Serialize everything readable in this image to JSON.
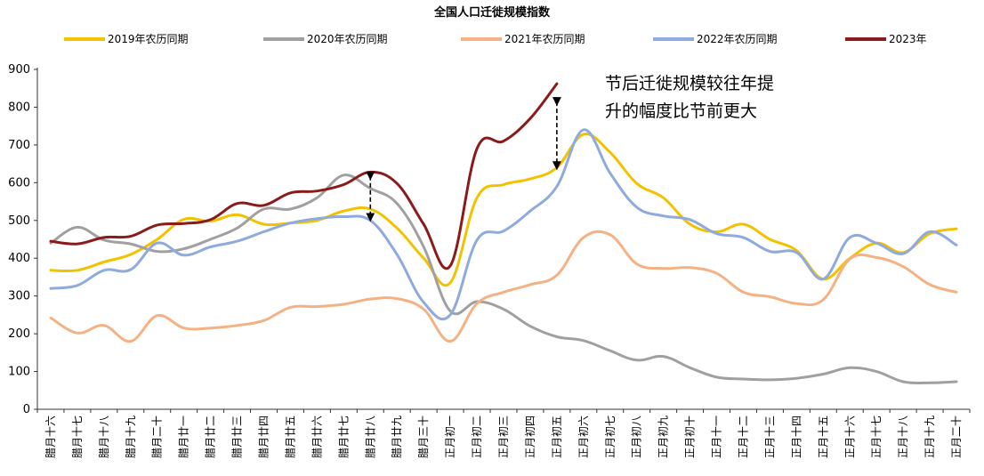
{
  "chart_data": {
    "type": "line",
    "title": "全国人口迁徙规模指数",
    "xlabel": "",
    "ylabel": "",
    "ylim": [
      0,
      900
    ],
    "yticks": [
      0,
      100,
      200,
      300,
      400,
      500,
      600,
      700,
      800,
      900
    ],
    "grid": false,
    "legend_position": "top",
    "categories": [
      "腊月十六",
      "腊月十七",
      "腊月十八",
      "腊月十九",
      "腊月二十",
      "腊月廿一",
      "腊月廿二",
      "腊月廿三",
      "腊月廿四",
      "腊月廿五",
      "腊月廿六",
      "腊月廿七",
      "腊月廿八",
      "腊月廿九",
      "腊月三十",
      "正月初一",
      "正月初二",
      "正月初三",
      "正月初四",
      "正月初五",
      "正月初六",
      "正月初七",
      "正月初八",
      "正月初九",
      "正月初十",
      "正月十一",
      "正月十二",
      "正月十三",
      "正月十四",
      "正月十五",
      "正月十六",
      "正月十七",
      "正月十八",
      "正月十九",
      "正月二十"
    ],
    "series": [
      {
        "name": "2019年农历同期",
        "color": "#F2C200",
        "values": [
          368,
          368,
          390,
          410,
          450,
          503,
          498,
          515,
          490,
          493,
          500,
          525,
          530,
          480,
          400,
          335,
          560,
          595,
          610,
          640,
          728,
          680,
          598,
          560,
          490,
          470,
          490,
          450,
          420,
          345,
          400,
          440,
          415,
          465,
          478
        ]
      },
      {
        "name": "2020年农历同期",
        "color": "#A0A0A0",
        "values": [
          440,
          482,
          448,
          438,
          418,
          425,
          450,
          480,
          530,
          530,
          560,
          620,
          585,
          545,
          430,
          260,
          285,
          265,
          220,
          192,
          182,
          155,
          130,
          140,
          110,
          85,
          80,
          78,
          82,
          93,
          110,
          100,
          73,
          70,
          73
        ]
      },
      {
        "name": "2021年农历同期",
        "color": "#F4B183",
        "values": [
          242,
          202,
          222,
          180,
          248,
          215,
          215,
          222,
          235,
          270,
          272,
          278,
          292,
          293,
          265,
          180,
          280,
          310,
          330,
          355,
          455,
          462,
          385,
          373,
          375,
          360,
          310,
          298,
          280,
          290,
          398,
          402,
          378,
          330,
          310
        ]
      },
      {
        "name": "2022年农历同期",
        "color": "#8FAADC",
        "values": [
          320,
          328,
          368,
          370,
          440,
          408,
          430,
          445,
          470,
          493,
          505,
          510,
          500,
          410,
          283,
          250,
          448,
          472,
          525,
          590,
          740,
          625,
          535,
          512,
          502,
          465,
          455,
          418,
          415,
          345,
          455,
          440,
          412,
          470,
          435
        ]
      },
      {
        "name": "2023年",
        "color": "#8B1A1A",
        "values": [
          445,
          438,
          455,
          458,
          488,
          492,
          502,
          545,
          540,
          573,
          578,
          595,
          628,
          598,
          490,
          380,
          690,
          710,
          770,
          862,
          null,
          null,
          null,
          null,
          null,
          null,
          null,
          null,
          null,
          null,
          null,
          null,
          null,
          null,
          null
        ]
      }
    ],
    "annotations": [
      {
        "text_line1": "节后迁徙规模较往年提",
        "text_line2": "升的幅度比节前更大"
      }
    ]
  }
}
